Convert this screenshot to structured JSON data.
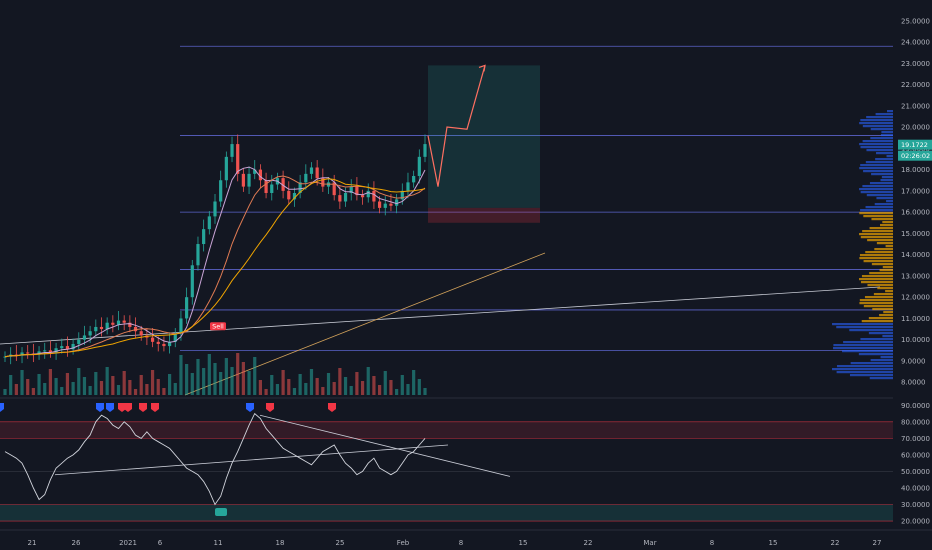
{
  "chart_data": [
    {
      "type": "candlestick",
      "title": "",
      "y_axis_ticks": [
        "25.0000",
        "24.0000",
        "23.0000",
        "22.0000",
        "21.0000",
        "20.0000",
        "19.0000",
        "18.0000",
        "17.0000",
        "16.0000",
        "15.0000",
        "14.0000",
        "13.0000",
        "12.0000",
        "11.0000",
        "10.0000",
        "9.0000",
        "8.0000"
      ],
      "ylim": [
        7.4,
        25.6
      ],
      "x_axis_ticks": [
        "21",
        "26",
        "2021",
        "6",
        "11",
        "18",
        "25",
        "Feb",
        "8",
        "15",
        "22",
        "Mar",
        "8",
        "15",
        "22",
        "27"
      ],
      "last_price_label": "19.1722",
      "countdown_label": "02:26:02",
      "horizontal_levels": [
        23.8,
        19.6,
        16.0,
        13.3,
        11.4,
        9.5
      ],
      "sell_label": "Sell",
      "close_series": [
        9.2,
        9.3,
        9.25,
        9.4,
        9.35,
        9.3,
        9.45,
        9.5,
        9.4,
        9.6,
        9.7,
        9.55,
        9.8,
        10.0,
        10.2,
        10.4,
        10.6,
        10.5,
        10.8,
        10.7,
        10.9,
        10.8,
        10.6,
        10.4,
        10.2,
        10.1,
        9.9,
        9.8,
        9.7,
        9.9,
        10.3,
        11.0,
        12.0,
        13.5,
        14.5,
        15.2,
        15.8,
        16.5,
        17.5,
        18.6,
        19.2,
        17.8,
        17.2,
        17.8,
        18.0,
        17.5,
        16.9,
        17.3,
        17.6,
        17.0,
        16.6,
        16.9,
        17.4,
        17.8,
        18.1,
        17.6,
        17.2,
        17.4,
        16.8,
        16.5,
        16.9,
        17.2,
        16.8,
        16.7,
        17.0,
        16.5,
        16.2,
        16.4,
        16.3,
        16.6,
        17.0,
        17.4,
        17.7,
        18.6,
        19.2
      ],
      "projection_points": [
        [
          19.6,
          19.5
        ],
        [
          17.2,
          17.6
        ],
        [
          20.0,
          19.9
        ],
        [
          22.9,
          22.9
        ]
      ],
      "target_box": {
        "top": 22.9,
        "entry": 16.2,
        "stop": 15.5
      }
    },
    {
      "type": "line",
      "title": "",
      "y_axis_ticks": [
        "90.0000",
        "80.0000",
        "70.0000",
        "60.0000",
        "50.0000",
        "40.0000",
        "30.0000",
        "20.0000"
      ],
      "ylim": [
        17,
        92
      ],
      "bands": [
        [
          70,
          80
        ],
        [
          20,
          30
        ]
      ],
      "values": [
        62,
        60,
        58,
        55,
        48,
        40,
        33,
        36,
        45,
        52,
        55,
        58,
        60,
        63,
        68,
        72,
        80,
        84,
        82,
        78,
        76,
        80,
        77,
        72,
        70,
        74,
        70,
        68,
        66,
        64,
        60,
        56,
        52,
        50,
        48,
        44,
        38,
        30,
        35,
        46,
        55,
        62,
        70,
        78,
        85,
        82,
        76,
        72,
        68,
        64,
        62,
        60,
        58,
        56,
        54,
        58,
        62,
        64,
        66,
        60,
        55,
        52,
        48,
        50,
        55,
        58,
        52,
        50,
        48,
        50,
        55,
        60,
        62,
        66,
        70
      ]
    }
  ]
}
